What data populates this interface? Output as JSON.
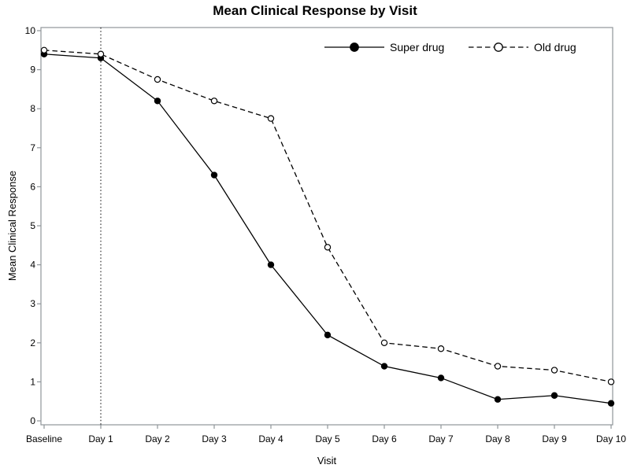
{
  "chart_data": {
    "type": "line",
    "title": "Mean Clinical Response by Visit",
    "xlabel": "Visit",
    "ylabel": "Mean Clinical Response",
    "categories": [
      "Baseline",
      "Day 1",
      "Day 2",
      "Day 3",
      "Day 4",
      "Day 5",
      "Day 6",
      "Day 7",
      "Day 8",
      "Day 9",
      "Day 10"
    ],
    "series": [
      {
        "name": "Super drug",
        "values": [
          9.4,
          9.3,
          8.2,
          6.3,
          4.0,
          2.2,
          1.4,
          1.1,
          0.55,
          0.65,
          0.45
        ],
        "line": "solid",
        "marker": "filled-circle",
        "color": "#000000"
      },
      {
        "name": "Old drug",
        "values": [
          9.5,
          9.4,
          8.75,
          8.2,
          7.75,
          4.45,
          2.0,
          1.85,
          1.4,
          1.3,
          1.0
        ],
        "line": "dashed",
        "marker": "open-circle",
        "color": "#000000"
      }
    ],
    "ylim": [
      0,
      10
    ],
    "yticks": [
      0,
      1,
      2,
      3,
      4,
      5,
      6,
      7,
      8,
      9,
      10
    ],
    "refline": {
      "at": "Day 1",
      "style": "dotted",
      "color": "#000000"
    },
    "legend_position": "top-right-inside",
    "grid": false,
    "axis_color": "#8f959a",
    "background": "#ffffff"
  }
}
